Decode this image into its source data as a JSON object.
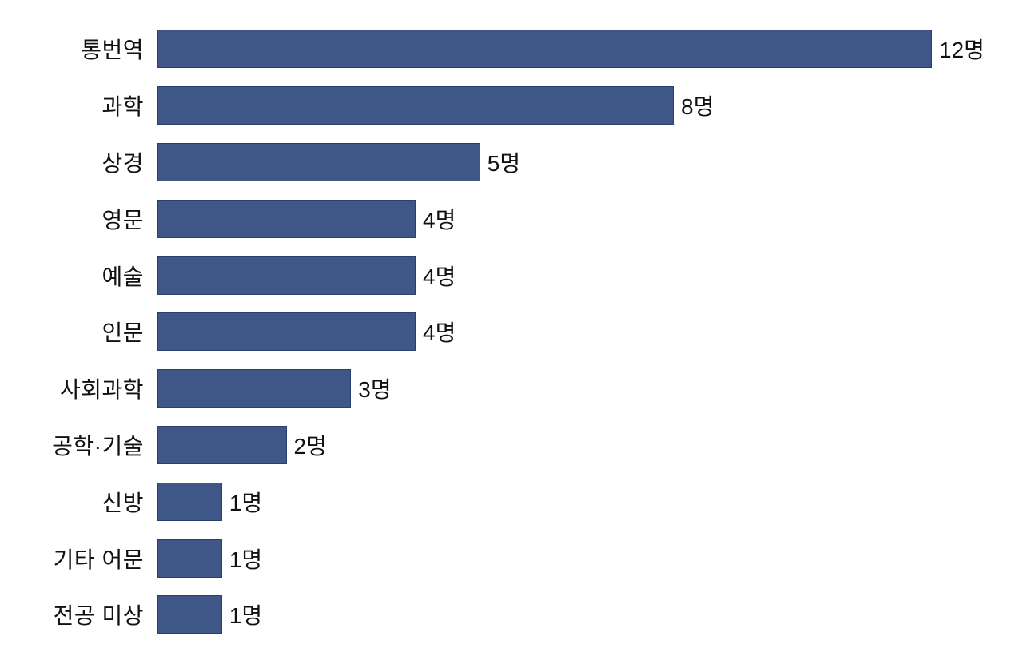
{
  "chart_data": {
    "type": "bar",
    "orientation": "horizontal",
    "title": "",
    "xlabel": "",
    "ylabel": "",
    "unit": "명",
    "categories": [
      "통번역",
      "과학",
      "상경",
      "영문",
      "예술",
      "인문",
      "사회과학",
      "공학·기술",
      "신방",
      "기타 어문",
      "전공 미상"
    ],
    "values": [
      12,
      8,
      5,
      4,
      4,
      4,
      3,
      2,
      1,
      1,
      1
    ],
    "data_labels": [
      "12명",
      "8명",
      "5명",
      "4명",
      "4명",
      "4명",
      "3명",
      "2명",
      "1명",
      "1명",
      "1명"
    ],
    "xlim": [
      0,
      12
    ],
    "grid": false,
    "legend": false,
    "axis_lines": false,
    "bar_color": "#3F5787",
    "bar_border_color": "#2A406B",
    "background_color": "#FFFFFF",
    "text_color": "#111111"
  }
}
